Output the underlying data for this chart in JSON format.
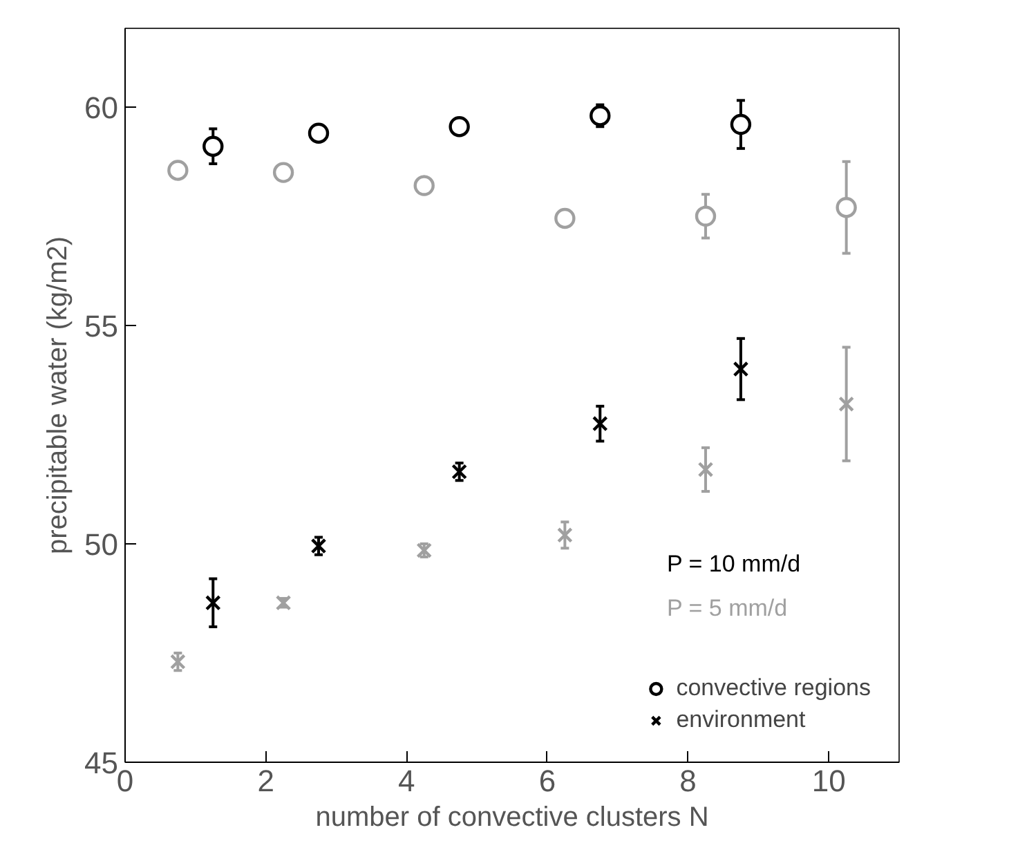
{
  "chart_data": {
    "type": "scatter",
    "xlabel": "number of convective clusters N",
    "ylabel": "precipitable water (kg/m2)",
    "xlim": [
      0,
      11
    ],
    "ylim": [
      45,
      61.8
    ],
    "xticks": [
      0,
      2,
      4,
      6,
      8,
      10
    ],
    "yticks": [
      45,
      50,
      55,
      60
    ],
    "grid": false,
    "legend": "bottom right",
    "series": [
      {
        "name": "convective regions",
        "color": "#000000",
        "marker": "circle",
        "x": [
          1.25,
          2.75,
          4.75,
          6.75,
          8.75
        ],
        "values": [
          59.1,
          59.4,
          59.55,
          59.8,
          59.6
        ],
        "errors": [
          0.4,
          0.15,
          0.15,
          0.25,
          0.55
        ]
      },
      {
        "color": "#a0a0a0",
        "marker": "circle",
        "x": [
          0.75,
          2.25,
          4.25,
          6.25,
          8.25,
          10.25
        ],
        "values": [
          58.55,
          58.5,
          58.2,
          57.45,
          57.5,
          57.7
        ],
        "errors": [
          0.1,
          0.1,
          0.1,
          0.15,
          0.5,
          1.05
        ]
      },
      {
        "name": "environment",
        "color": "#000000",
        "marker": "cross",
        "x": [
          1.25,
          2.75,
          4.75,
          6.75,
          8.75
        ],
        "values": [
          48.65,
          49.95,
          51.65,
          52.75,
          54.0
        ],
        "errors": [
          0.55,
          0.2,
          0.2,
          0.4,
          0.7
        ]
      },
      {
        "color": "#a0a0a0",
        "marker": "cross",
        "x": [
          0.75,
          2.25,
          4.25,
          6.25,
          8.25,
          10.25
        ],
        "values": [
          47.3,
          48.65,
          49.85,
          50.2,
          51.7,
          53.2
        ],
        "errors": [
          0.2,
          0.1,
          0.15,
          0.3,
          0.5,
          1.3
        ]
      }
    ],
    "annotations": [
      "P = 10 mm/d",
      "P = 5 mm/d"
    ]
  }
}
